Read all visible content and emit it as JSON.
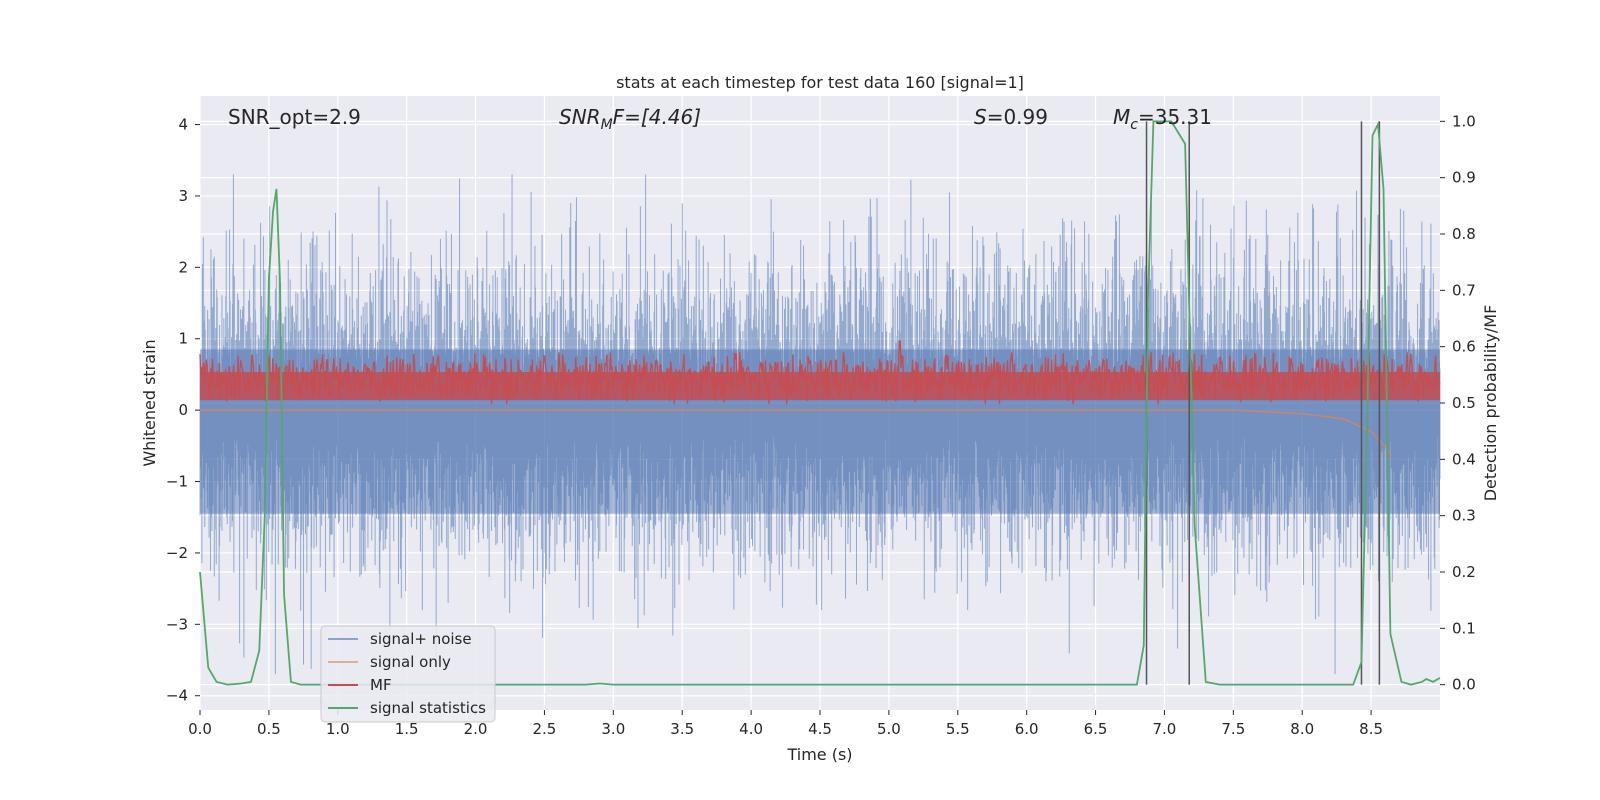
{
  "chart_data": {
    "type": "line",
    "title": "stats at each timestep for test data 160 [signal=1]",
    "xlabel": "Time (s)",
    "ylabel_left": "Whitened strain",
    "ylabel_right": "Detection probability/MF",
    "xlim": [
      0,
      9.0
    ],
    "ylim_left": [
      -4.2,
      4.4
    ],
    "ylim_right": [
      -0.045,
      1.045
    ],
    "xticks": [
      0.0,
      0.5,
      1.0,
      1.5,
      2.0,
      2.5,
      3.0,
      3.5,
      4.0,
      4.5,
      5.0,
      5.5,
      6.0,
      6.5,
      7.0,
      7.5,
      8.0,
      8.5
    ],
    "xtick_labels": [
      "0.0",
      "0.5",
      "1.0",
      "1.5",
      "2.0",
      "2.5",
      "3.0",
      "3.5",
      "4.0",
      "4.5",
      "5.0",
      "5.5",
      "6.0",
      "6.5",
      "7.0",
      "7.5",
      "8.0",
      "8.5"
    ],
    "yticks_left": [
      4,
      3,
      2,
      1,
      0,
      -1,
      -2,
      -3,
      -4
    ],
    "ytick_labels_left": [
      "4",
      "3",
      "2",
      "1",
      "0",
      "−1",
      "−2",
      "−3",
      "−4"
    ],
    "yticks_right": [
      1.0,
      0.9,
      0.8,
      0.7,
      0.6,
      0.5,
      0.4,
      0.3,
      0.2,
      0.1,
      0.0
    ],
    "ytick_labels_right": [
      "1.0",
      "0.9",
      "0.8",
      "0.7",
      "0.6",
      "0.5",
      "0.4",
      "0.3",
      "0.2",
      "0.1",
      "0.0"
    ],
    "grid": true,
    "legend_position": "lower-left",
    "annotations": {
      "snr_opt": "SNR_opt=2.9",
      "snr_mf_main": "SNR",
      "snr_mf_sub": "M",
      "snr_mf_rest": "F=[4.46]",
      "s_var": "S",
      "s_rest": "=0.99",
      "mc_var": "M",
      "mc_sub": "c",
      "mc_rest": "=35.31"
    },
    "colors": {
      "background": "#eaeaf2",
      "grid": "#ffffff",
      "signal_noise": "#4c72b0",
      "signal_only": "#dd8452",
      "mf": "#c44e52",
      "signal_statistics": "#55a868",
      "vlines": "#555555"
    },
    "series": [
      {
        "name": "signal+ noise",
        "axis": "left",
        "style": "noise",
        "color": "#4c72b0",
        "note_values": "dense whitened strain, roughly within -3.8 to 3.4"
      },
      {
        "name": "signal only",
        "axis": "left",
        "style": "line",
        "color": "#dd8452",
        "x": [
          0.0,
          7.5,
          8.0,
          8.3,
          8.5,
          8.6,
          8.65
        ],
        "y": [
          0.0,
          0.0,
          -0.05,
          -0.12,
          -0.3,
          -0.5,
          -0.65
        ]
      },
      {
        "name": "MF",
        "axis": "right",
        "style": "mf",
        "color": "#c44e52",
        "base": 0.545,
        "spread": 0.035,
        "peak_x": 5.08,
        "peak_y": 0.61
      },
      {
        "name": "signal statistics",
        "axis": "right",
        "style": "line",
        "color": "#55a868",
        "x": [
          0.0,
          0.06,
          0.12,
          0.2,
          0.3,
          0.37,
          0.43,
          0.47,
          0.5,
          0.53,
          0.555,
          0.58,
          0.61,
          0.66,
          0.73,
          0.8,
          1.0,
          2.0,
          2.8,
          2.9,
          3.0,
          4.0,
          5.0,
          6.0,
          6.8,
          6.85,
          6.88,
          6.92,
          6.98,
          7.05,
          7.1,
          7.15,
          7.22,
          7.3,
          7.4,
          8.0,
          8.37,
          8.43,
          8.47,
          8.51,
          8.55,
          8.59,
          8.64,
          8.72,
          8.79,
          8.87,
          8.9,
          8.95,
          9.0
        ],
        "y": [
          0.2,
          0.03,
          0.005,
          0.0,
          0.002,
          0.005,
          0.06,
          0.3,
          0.72,
          0.84,
          0.88,
          0.72,
          0.16,
          0.005,
          0.0,
          0.0,
          0.0,
          0.0,
          0.0,
          0.002,
          0.0,
          0.0,
          0.0,
          0.0,
          0.0,
          0.07,
          0.68,
          1.0,
          1.0,
          1.0,
          0.98,
          0.96,
          0.28,
          0.005,
          0.0,
          0.0,
          0.0,
          0.04,
          0.45,
          0.975,
          0.995,
          0.88,
          0.09,
          0.005,
          0.0,
          0.005,
          0.01,
          0.005,
          0.012
        ]
      }
    ],
    "vlines_x": [
      6.87,
      7.18,
      8.43,
      8.56
    ]
  }
}
